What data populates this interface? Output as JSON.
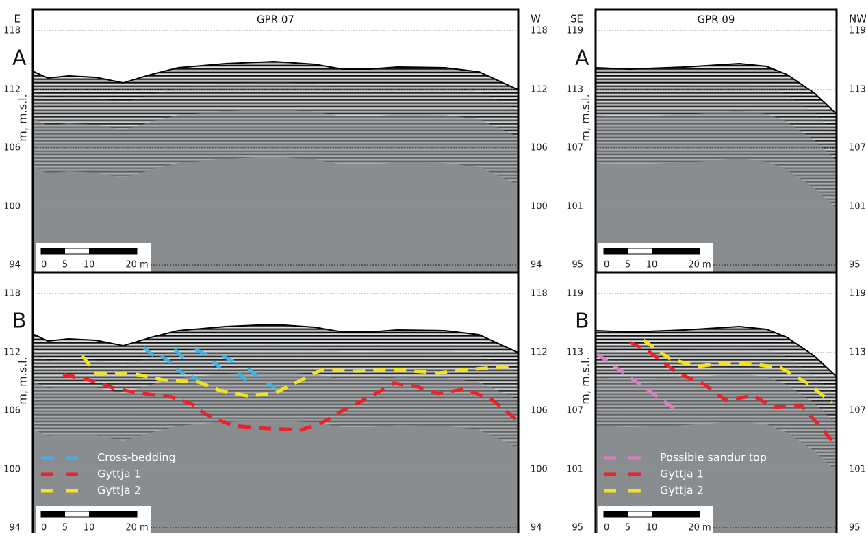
{
  "figures": [
    {
      "title": "GPR 07",
      "left_label": "E",
      "right_label": "W",
      "y_label": "m, m.s.l.",
      "yticks": [
        118,
        112,
        106,
        100,
        94
      ],
      "panels": [
        "A",
        "B"
      ],
      "scale_labels": [
        "0",
        "5",
        "10",
        "20 m"
      ],
      "legend": [
        {
          "label": "Cross-bedding",
          "color": "#3cb4e6"
        },
        {
          "label": "Gyttja 1",
          "color": "#e8232a"
        },
        {
          "label": "Gyttja 2",
          "color": "#f2e41c"
        }
      ]
    },
    {
      "title": "GPR 09",
      "left_label": "SE",
      "right_label": "NW",
      "y_label": "m, m.s.l.",
      "yticks": [
        119,
        113,
        107,
        101,
        95
      ],
      "panels": [
        "A",
        "B"
      ],
      "scale_labels": [
        "0",
        "5",
        "10",
        "20 m"
      ],
      "legend": [
        {
          "label": "Possible sandur top",
          "color": "#d97fc0"
        },
        {
          "label": "Gyttja 1",
          "color": "#e8232a"
        },
        {
          "label": "Gyttja 2",
          "color": "#f2e41c"
        }
      ]
    }
  ]
}
